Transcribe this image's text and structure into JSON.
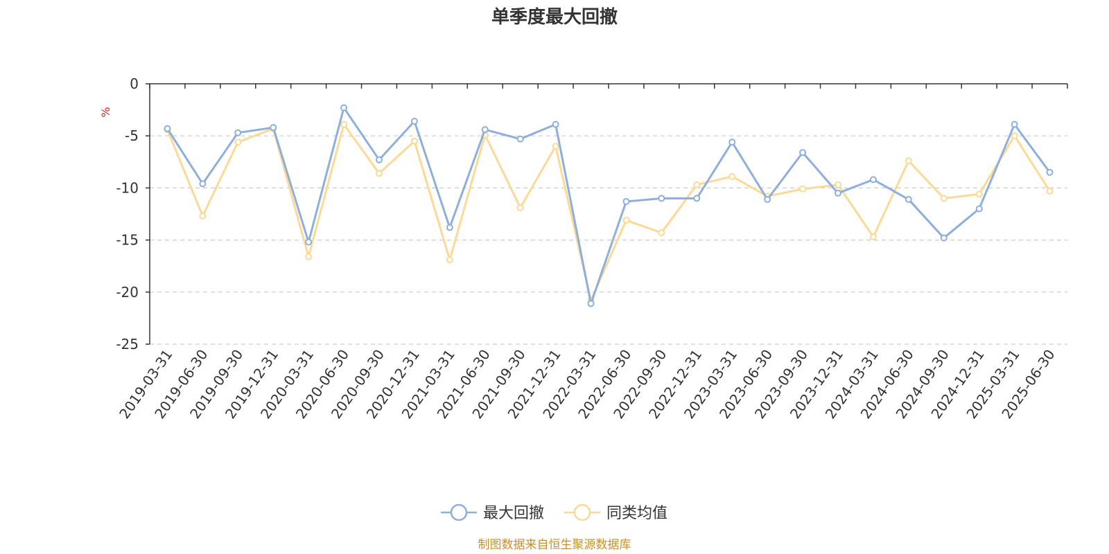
{
  "chart_data": {
    "type": "line",
    "title": "单季度最大回撤",
    "unit_label": "%",
    "source_note": "制图数据来自恒生聚源数据库",
    "ylim": [
      -25,
      0
    ],
    "yticks": [
      0,
      -5,
      -10,
      -15,
      -20,
      -25
    ],
    "grid": "horizontal-dashed",
    "legend_position": "bottom-center",
    "categories": [
      "2019-03-31",
      "2019-06-30",
      "2019-09-30",
      "2019-12-31",
      "2020-03-31",
      "2020-06-30",
      "2020-09-30",
      "2020-12-31",
      "2021-03-31",
      "2021-06-30",
      "2021-09-30",
      "2021-12-31",
      "2022-03-31",
      "2022-06-30",
      "2022-09-30",
      "2022-12-31",
      "2023-03-31",
      "2023-06-30",
      "2023-09-30",
      "2023-12-31",
      "2024-03-31",
      "2024-06-30",
      "2024-09-30",
      "2024-12-31",
      "2025-03-31",
      "2025-06-30"
    ],
    "series": [
      {
        "name": "最大回撤",
        "color": "#8eaedb",
        "values": [
          -4.3,
          -9.6,
          -4.7,
          -4.2,
          -15.2,
          -2.3,
          -7.3,
          -3.6,
          -13.8,
          -4.4,
          -5.3,
          -3.9,
          -21.1,
          -11.3,
          -11.0,
          -11.0,
          -5.6,
          -11.1,
          -6.6,
          -10.5,
          -9.2,
          -11.1,
          -14.8,
          -12.0,
          -3.9,
          -8.5
        ]
      },
      {
        "name": "同类均值",
        "color": "#fbd996",
        "values": [
          -4.4,
          -12.7,
          -5.6,
          -4.3,
          -16.6,
          -3.9,
          -8.6,
          -5.5,
          -16.9,
          -4.9,
          -11.9,
          -6.0,
          -20.8,
          -13.1,
          -14.3,
          -9.7,
          -8.9,
          -10.8,
          -10.1,
          -9.7,
          -14.7,
          -7.4,
          -11.0,
          -10.6,
          -5.0,
          -10.3
        ]
      }
    ]
  }
}
